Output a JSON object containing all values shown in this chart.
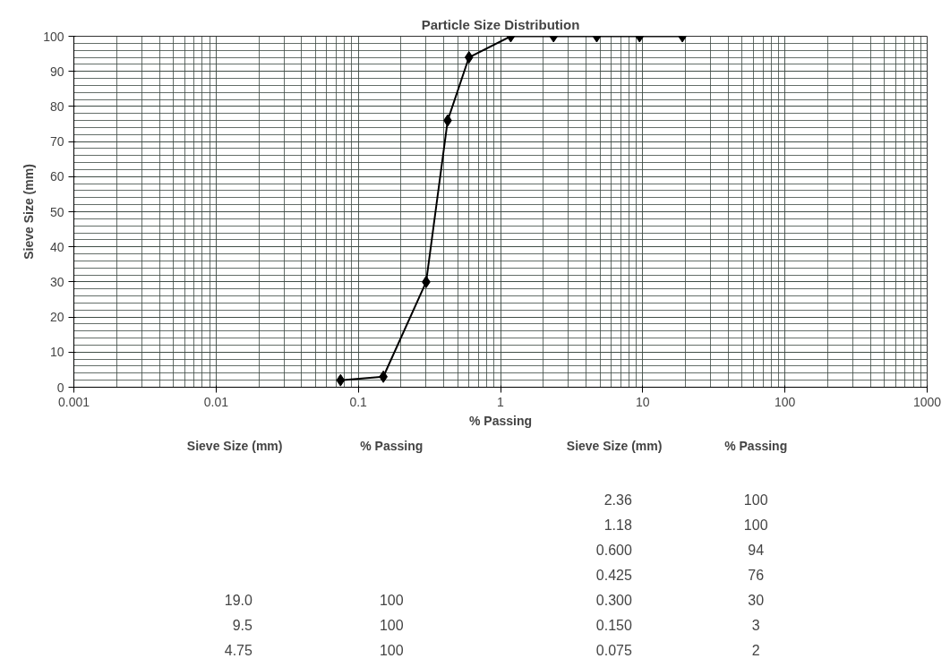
{
  "chart_data": {
    "type": "line",
    "title": "Particle Size Distribution",
    "xlabel": "% Passing",
    "ylabel": "Sieve Size (mm)",
    "x": [
      19.0,
      9.5,
      4.75,
      2.36,
      1.18,
      0.6,
      0.425,
      0.3,
      0.15,
      0.075
    ],
    "series": [
      {
        "color": "#000000",
        "values": [
          100,
          100,
          100,
          100,
          100,
          94,
          76,
          30,
          3,
          2
        ]
      }
    ],
    "annotations": [
      "Sieve Size (mm)",
      "% Passing",
      "Sieve Size (mm)",
      "% Passing",
      "19.0",
      "100",
      "9.5",
      "100",
      "4.75",
      "100",
      "2.36",
      "100",
      "1.18",
      "100",
      "0.600",
      "94",
      "0.425",
      "76",
      "0.300",
      "30",
      "0.150",
      "3",
      "0.075",
      "2"
    ],
    "log": "x",
    "xlim": [
      0.001,
      1000
    ],
    "xticks": [
      0.001,
      0.01,
      0.1,
      1,
      10,
      100,
      1000
    ],
    "ylim": [
      0,
      100
    ],
    "yticks": [
      0,
      10,
      20,
      30,
      40,
      50,
      60,
      70,
      80,
      90,
      100
    ],
    "grid": true,
    "marker": "diamond",
    "line_style": "solid"
  }
}
